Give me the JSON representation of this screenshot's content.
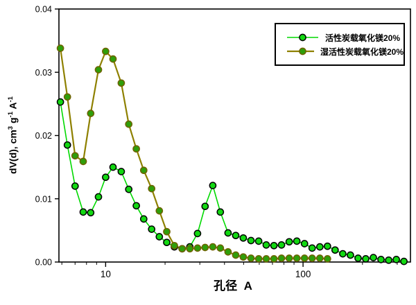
{
  "chart_data": {
    "type": "line",
    "title": "",
    "xlabel": "孔径  A",
    "ylabel": "dV(d), cm3 g-1 A-1",
    "ylabel_parts": [
      {
        "t": "dV(d), cm"
      },
      {
        "t": "3",
        "sup": true
      },
      {
        "t": " g"
      },
      {
        "t": "-1",
        "sup": true
      },
      {
        "t": " A"
      },
      {
        "t": "-1",
        "sup": true
      }
    ],
    "x_scale": "log",
    "xlim": [
      5.8,
      350
    ],
    "ylim": [
      0,
      0.04
    ],
    "grid": false,
    "legend_position": "top-right",
    "axis_color": "#000000",
    "background_color": "#ffffff",
    "y_ticks": [
      {
        "value": 0.0,
        "label": "0.00"
      },
      {
        "value": 0.01,
        "label": "0.01"
      },
      {
        "value": 0.02,
        "label": "0.02"
      },
      {
        "value": 0.03,
        "label": "0.03"
      },
      {
        "value": 0.04,
        "label": "0.04"
      }
    ],
    "x_major_ticks": [
      {
        "value": 10,
        "label": "10"
      },
      {
        "value": 100,
        "label": "100"
      }
    ],
    "x_minor_ticks": [
      6,
      7,
      8,
      9,
      20,
      30,
      40,
      50,
      60,
      70,
      80,
      90,
      200,
      300
    ],
    "x": [
      5.9,
      6.4,
      7.0,
      7.7,
      8.4,
      9.2,
      10.0,
      10.9,
      12.0,
      13.1,
      14.3,
      15.6,
      17.1,
      18.7,
      20.4,
      22.3,
      24.4,
      26.7,
      29.2,
      31.9,
      34.9,
      38.1,
      41.7,
      45.6,
      49.8,
      54.5,
      59.6,
      65.1,
      71.2,
      77.8,
      85.1,
      93.0,
      101.7,
      111.2,
      121.6,
      132.9,
      145.3,
      158.9,
      173.7,
      190.0,
      207.7,
      227.1,
      248.3,
      271.5,
      296.8,
      324.5
    ],
    "series": [
      {
        "name": "活性炭载氧化镁20%",
        "line_color": "#00d900",
        "line_width": 1.6,
        "marker_fill": "#12d812",
        "marker_edge": "#000000",
        "values": [
          0.0253,
          0.0185,
          0.012,
          0.0079,
          0.0078,
          0.0103,
          0.0134,
          0.015,
          0.0143,
          0.0115,
          0.0089,
          0.0068,
          0.0052,
          0.004,
          0.0031,
          0.0024,
          0.0021,
          0.0024,
          0.0045,
          0.0088,
          0.0121,
          0.0079,
          0.0046,
          0.0042,
          0.0038,
          0.0034,
          0.0033,
          0.0027,
          0.0026,
          0.0027,
          0.0032,
          0.0033,
          0.0029,
          0.0022,
          0.0024,
          0.0025,
          0.0019,
          0.0013,
          0.0011,
          0.0006,
          0.0005,
          0.0007,
          0.0004,
          0.0003,
          0.0004,
          0.0001
        ]
      },
      {
        "name": "湿活性炭载氧化镁20%",
        "line_color": "#8e8000",
        "line_width": 2.2,
        "marker_fill": "#2f9e0a",
        "marker_edge": "#6e6200",
        "values": [
          0.0338,
          0.0261,
          0.0168,
          0.0159,
          0.0235,
          0.0304,
          0.0333,
          0.0321,
          0.0283,
          0.0218,
          0.0179,
          0.0145,
          0.0116,
          0.0081,
          0.0048,
          0.0026,
          0.0021,
          0.0021,
          0.0022,
          0.0023,
          0.0024,
          0.0022,
          0.0016,
          0.0011,
          0.0008,
          0.0006,
          0.0005,
          0.0005,
          0.0005,
          0.0006,
          0.0006,
          0.0006,
          0.0006,
          0.0006,
          0.0006,
          0.0005,
          null,
          null,
          null,
          null,
          null,
          null,
          null,
          null,
          null,
          null
        ]
      }
    ]
  }
}
